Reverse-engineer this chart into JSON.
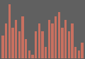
{
  "values": [
    6,
    9,
    14,
    8,
    10,
    7,
    11,
    5,
    2,
    1,
    7,
    9,
    7,
    3,
    10,
    9,
    11,
    12,
    8,
    10,
    7,
    9,
    3,
    2,
    4
  ],
  "bar_color": "#c97060",
  "background_color": "#606060",
  "ylim": [
    0,
    15
  ],
  "bar_width": 0.75
}
